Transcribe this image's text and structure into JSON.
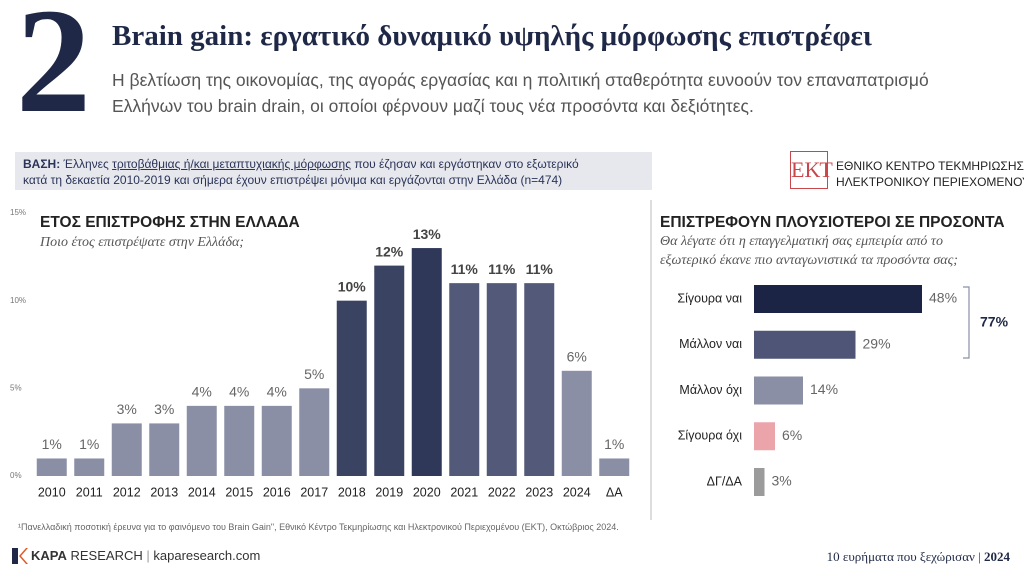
{
  "header": {
    "number": "2",
    "title": "Brain gain: εργατικό δυναμικό υψηλής μόρφωσης επιστρέφει",
    "subtitle": [
      "Η βελτίωση της οικονομίας, της αγοράς εργασίας και η πολιτική σταθερότητα ευνοούν τον επαναπατρισμό",
      "Ελλήνων του brain drain, οι οποίοι φέρνουν μαζί τους νέα προσόντα και δεξιότητες."
    ]
  },
  "base": {
    "label": "ΒΑΣΗ:",
    "text": [
      "Έλληνες",
      "τριτοβάθμιας ή/και μεταπτυχιακής μόρφωσης",
      "που έζησαν και εργάστηκαν στο εξωτερικό",
      "κατά τη δεκαετία 2010-2019 και σήμερα έχουν επιστρέψει μόνιμα και εργάζονται στην Ελλάδα (n=474)"
    ]
  },
  "logo": {
    "mark": "ΕΚΤ",
    "lines": [
      "ΕΘΝΙΚΟ ΚΕΝΤΡΟ ΤΕΚΜΗΡΙΩΣΗΣ &",
      "ΗΛΕΚΤΡΟΝΙΚΟΥ ΠΕΡΙΕΧΟΜΕΝΟΥ"
    ]
  },
  "chart_data": [
    {
      "type": "bar",
      "title": "ΕΤΟΣ ΕΠΙΣΤΡΟΦΗΣ ΣΤΗΝ ΕΛΛΑΔΑ",
      "subtitle": [
        "Ποιο έτος επιστρέψατε στην Ελλάδα;"
      ],
      "categories": [
        "2010",
        "2011",
        "2012",
        "2013",
        "2014",
        "2015",
        "2016",
        "2017",
        "2018",
        "2019",
        "2020",
        "2021",
        "2022",
        "2023",
        "2024",
        "ΔΑ"
      ],
      "values": [
        1,
        1,
        3,
        3,
        4,
        4,
        4,
        5,
        10,
        12,
        13,
        11,
        11,
        11,
        6,
        1
      ],
      "value_labels": [
        "1%",
        "1%",
        "3%",
        "3%",
        "4%",
        "4%",
        "4%",
        "5%",
        "10%",
        "12%",
        "13%",
        "11%",
        "11%",
        "11%",
        "6%",
        "1%"
      ],
      "colors": [
        "#8b8fa5",
        "#8b8fa5",
        "#8b8fa5",
        "#8b8fa5",
        "#8b8fa5",
        "#8b8fa5",
        "#8b8fa5",
        "#8b8fa5",
        "#3b4363",
        "#3b4363",
        "#2f3859",
        "#535a79",
        "#535a79",
        "#535a79",
        "#8b8fa5",
        "#8b8fa5"
      ],
      "ylim": [
        0,
        15
      ],
      "yticks": [
        {
          "value": 0,
          "label": "0%"
        },
        {
          "value": 5,
          "label": "5%"
        },
        {
          "value": 10,
          "label": "10%"
        },
        {
          "value": 15,
          "label": "15%"
        }
      ],
      "grid": false
    },
    {
      "type": "barh",
      "title": "ΕΠΙΣΤΡΕΦΟΥΝ ΠΛΟΥΣΙΟΤΕΡΟΙ ΣΕ ΠΡΟΣΟΝΤΑ",
      "subtitle": [
        "Θα λέγατε ότι η επαγγελματική σας εμπειρία από το",
        "εξωτερικό έκανε πιο ανταγωνιστικά τα προσόντα σας;"
      ],
      "categories": [
        "Σίγουρα ναι",
        "Μάλλον ναι",
        "Μάλλον όχι",
        "Σίγουρα όχι",
        "ΔΓ/ΔΑ"
      ],
      "values": [
        48,
        29,
        14,
        6,
        3
      ],
      "value_labels": [
        "48%",
        "29%",
        "14%",
        "6%",
        "3%"
      ],
      "colors": [
        "#1c2446",
        "#4e5577",
        "#8a8fa6",
        "#eca4ab",
        "#9b9b9b"
      ],
      "xlim": [
        0,
        50
      ],
      "annotation": {
        "value": 77,
        "label": "77%"
      }
    }
  ],
  "footnote": "¹Πανελλαδική ποσοτική έρευνα για το φαινόμενο του Brain Gain\", Εθνικό Κέντρο Τεκμηρίωσης και Ηλεκτρονικού Περιεχομένου (ΕΚΤ), Οκτώβριος 2024.",
  "footer": {
    "brand_bold": "KAPA",
    "brand": "RESEARCH",
    "website": "kaparesearch.com",
    "series": "10 ευρήματα που ξεχώρισαν",
    "year": "2024"
  }
}
